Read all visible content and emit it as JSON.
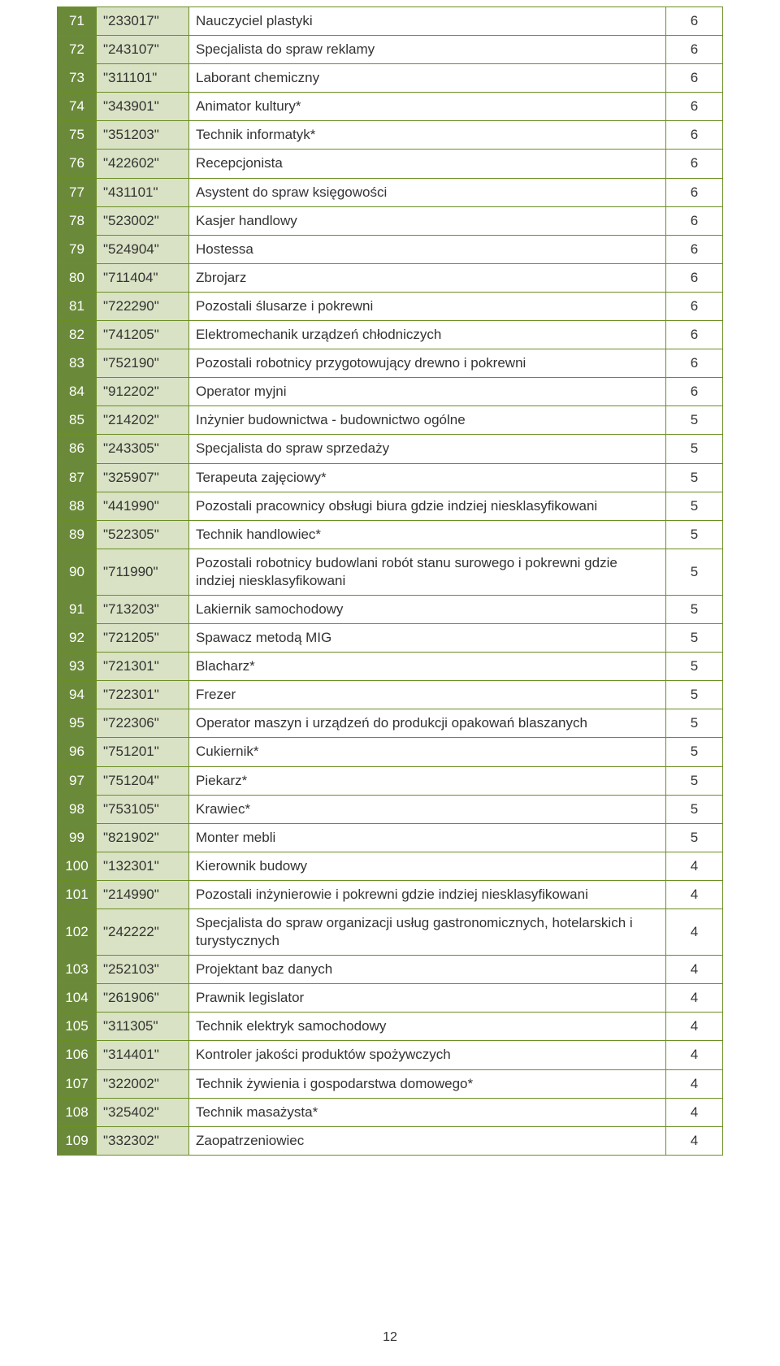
{
  "page_number": "12",
  "table": {
    "columns": {
      "idx_width": 48,
      "code_width": 114,
      "val_width": 70
    },
    "colors": {
      "idx_bg": "#6a8a3a",
      "idx_fg": "#ffffff",
      "code_bg": "#d9e2c4",
      "code_fg": "#333333",
      "desc_bg": "#ffffff",
      "desc_fg": "#333333",
      "val_bg": "#ffffff",
      "val_fg": "#333333",
      "border": "#6b8e23"
    },
    "font_size": 17,
    "rows": [
      {
        "idx": "71",
        "code": "\"233017\"",
        "desc": "Nauczyciel plastyki",
        "val": "6"
      },
      {
        "idx": "72",
        "code": "\"243107\"",
        "desc": "Specjalista do spraw reklamy",
        "val": "6"
      },
      {
        "idx": "73",
        "code": "\"311101\"",
        "desc": "Laborant chemiczny",
        "val": "6"
      },
      {
        "idx": "74",
        "code": "\"343901\"",
        "desc": "Animator kultury*",
        "val": "6"
      },
      {
        "idx": "75",
        "code": "\"351203\"",
        "desc": "Technik informatyk*",
        "val": "6"
      },
      {
        "idx": "76",
        "code": "\"422602\"",
        "desc": "Recepcjonista",
        "val": "6"
      },
      {
        "idx": "77",
        "code": "\"431101\"",
        "desc": "Asystent do spraw księgowości",
        "val": "6"
      },
      {
        "idx": "78",
        "code": "\"523002\"",
        "desc": "Kasjer handlowy",
        "val": "6"
      },
      {
        "idx": "79",
        "code": "\"524904\"",
        "desc": "Hostessa",
        "val": "6"
      },
      {
        "idx": "80",
        "code": "\"711404\"",
        "desc": "Zbrojarz",
        "val": "6"
      },
      {
        "idx": "81",
        "code": "\"722290\"",
        "desc": "Pozostali ślusarze i pokrewni",
        "val": "6"
      },
      {
        "idx": "82",
        "code": "\"741205\"",
        "desc": "Elektromechanik urządzeń chłodniczych",
        "val": "6"
      },
      {
        "idx": "83",
        "code": "\"752190\"",
        "desc": "Pozostali robotnicy przygotowujący drewno i pokrewni",
        "val": "6"
      },
      {
        "idx": "84",
        "code": "\"912202\"",
        "desc": "Operator myjni",
        "val": "6"
      },
      {
        "idx": "85",
        "code": "\"214202\"",
        "desc": "Inżynier budownictwa - budownictwo ogólne",
        "val": "5"
      },
      {
        "idx": "86",
        "code": "\"243305\"",
        "desc": "Specjalista do spraw sprzedaży",
        "val": "5"
      },
      {
        "idx": "87",
        "code": "\"325907\"",
        "desc": "Terapeuta zajęciowy*",
        "val": "5"
      },
      {
        "idx": "88",
        "code": "\"441990\"",
        "desc": "Pozostali pracownicy obsługi biura gdzie indziej niesklasyfikowani",
        "val": "5"
      },
      {
        "idx": "89",
        "code": "\"522305\"",
        "desc": "Technik handlowiec*",
        "val": "5"
      },
      {
        "idx": "90",
        "code": "\"711990\"",
        "desc": "Pozostali robotnicy budowlani robót stanu surowego i pokrewni gdzie indziej niesklasyfikowani",
        "val": "5"
      },
      {
        "idx": "91",
        "code": "\"713203\"",
        "desc": "Lakiernik samochodowy",
        "val": "5"
      },
      {
        "idx": "92",
        "code": "\"721205\"",
        "desc": "Spawacz metodą MIG",
        "val": "5"
      },
      {
        "idx": "93",
        "code": "\"721301\"",
        "desc": "Blacharz*",
        "val": "5"
      },
      {
        "idx": "94",
        "code": "\"722301\"",
        "desc": "Frezer",
        "val": "5"
      },
      {
        "idx": "95",
        "code": "\"722306\"",
        "desc": "Operator maszyn i urządzeń do produkcji opakowań blaszanych",
        "val": "5"
      },
      {
        "idx": "96",
        "code": "\"751201\"",
        "desc": "Cukiernik*",
        "val": "5"
      },
      {
        "idx": "97",
        "code": "\"751204\"",
        "desc": "Piekarz*",
        "val": "5"
      },
      {
        "idx": "98",
        "code": "\"753105\"",
        "desc": "Krawiec*",
        "val": "5"
      },
      {
        "idx": "99",
        "code": "\"821902\"",
        "desc": "Monter mebli",
        "val": "5"
      },
      {
        "idx": "100",
        "code": "\"132301\"",
        "desc": "Kierownik budowy",
        "val": "4"
      },
      {
        "idx": "101",
        "code": "\"214990\"",
        "desc": "Pozostali inżynierowie i pokrewni gdzie indziej niesklasyfikowani",
        "val": "4"
      },
      {
        "idx": "102",
        "code": "\"242222\"",
        "desc": "Specjalista do spraw organizacji usług gastronomicznych, hotelarskich i turystycznych",
        "val": "4"
      },
      {
        "idx": "103",
        "code": "\"252103\"",
        "desc": "Projektant baz danych",
        "val": "4"
      },
      {
        "idx": "104",
        "code": "\"261906\"",
        "desc": "Prawnik legislator",
        "val": "4"
      },
      {
        "idx": "105",
        "code": "\"311305\"",
        "desc": "Technik elektryk samochodowy",
        "val": "4"
      },
      {
        "idx": "106",
        "code": "\"314401\"",
        "desc": "Kontroler jakości produktów spożywczych",
        "val": "4"
      },
      {
        "idx": "107",
        "code": "\"322002\"",
        "desc": "Technik żywienia i gospodarstwa domowego*",
        "val": "4"
      },
      {
        "idx": "108",
        "code": "\"325402\"",
        "desc": "Technik masażysta*",
        "val": "4"
      },
      {
        "idx": "109",
        "code": "\"332302\"",
        "desc": "Zaopatrzeniowiec",
        "val": "4"
      }
    ]
  }
}
